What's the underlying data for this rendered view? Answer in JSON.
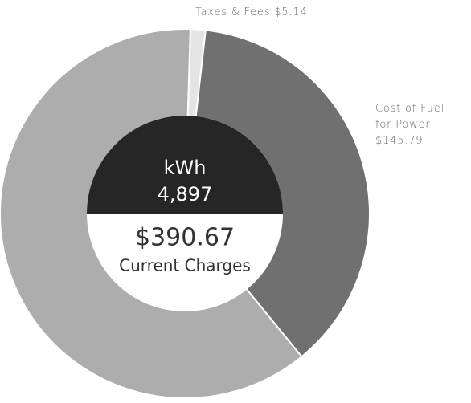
{
  "chart_data": {
    "type": "pie",
    "categories": [
      "Taxes & Fees",
      "Cost of Fuel for Power",
      null
    ],
    "values": [
      5.14,
      145.79,
      239.74
    ],
    "value_labels": [
      "$5.14",
      "$145.79",
      null
    ],
    "colors": [
      "#e4e4e4",
      "#707070",
      "#adadad"
    ],
    "center": {
      "unit": "kWh",
      "usage": "4,897",
      "total": "$390.67",
      "total_label": "Current Charges"
    }
  }
}
